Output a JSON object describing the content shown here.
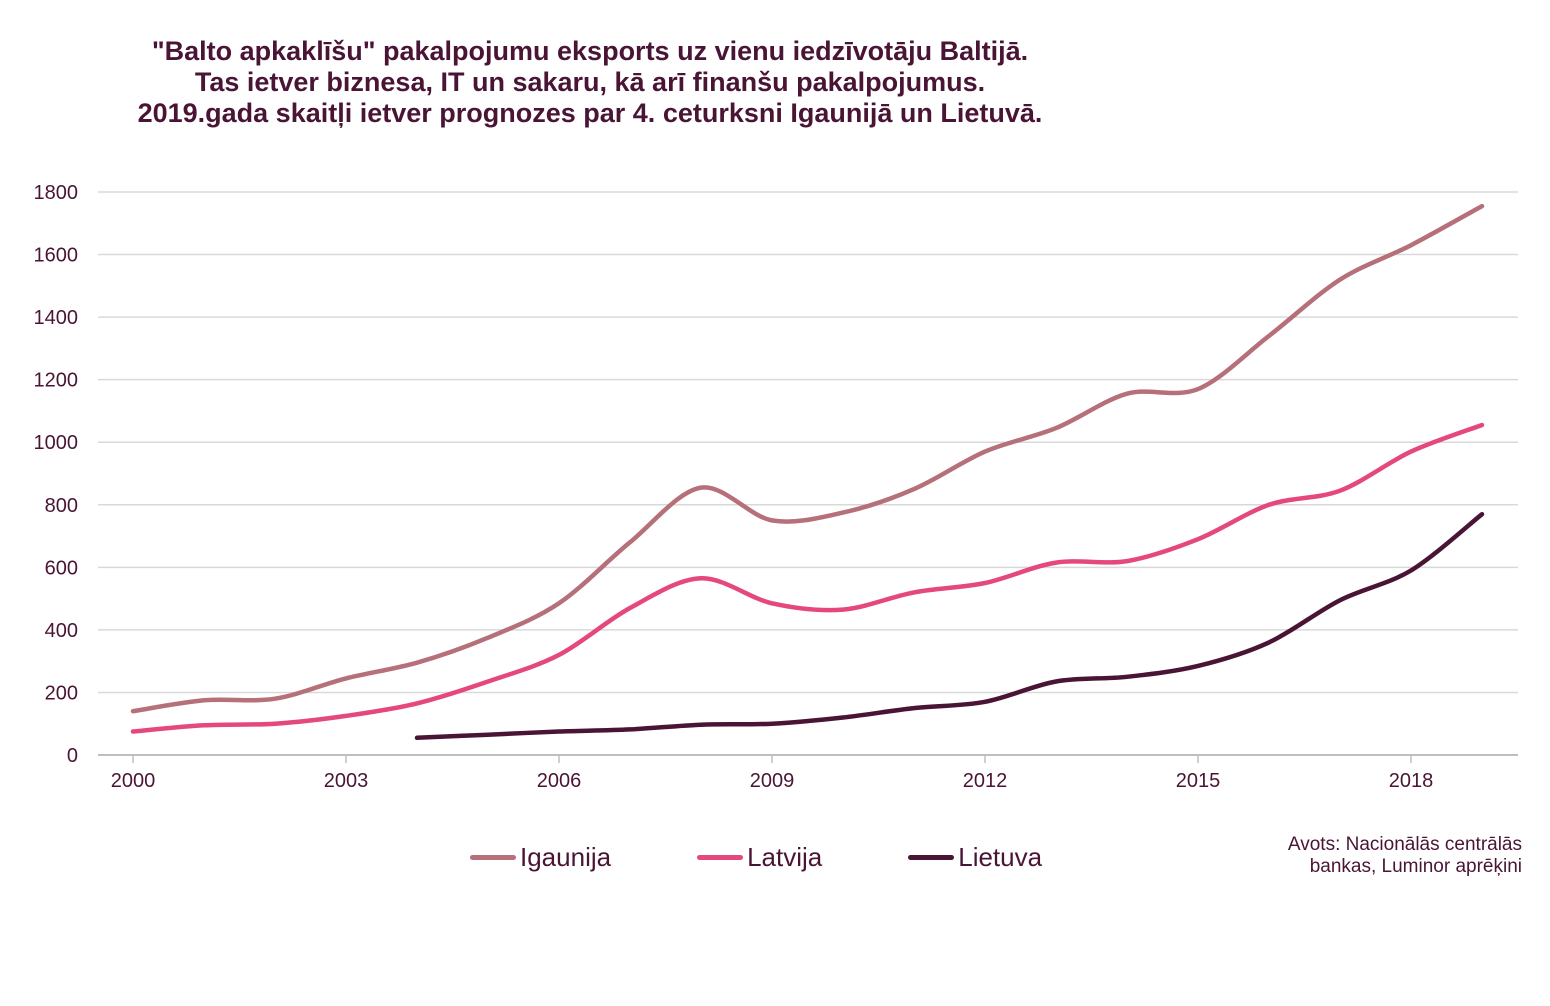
{
  "title": {
    "line1": "\"Balto apkaklīšu\" pakalpojumu eksports uz vienu iedzīvotāju Baltijā.",
    "line2": "Tas ietver biznesa, IT un sakaru, kā arī finanšu pakalpojumus.",
    "line3": "2019.gada skaitļi ietver prognozes par 4. ceturksni Igaunijā un Lietuvā."
  },
  "source": {
    "line1": "Avots: Nacionālās centrālās",
    "line2": "bankas, Luminor aprēķini"
  },
  "chart_data": {
    "type": "line",
    "x": [
      2000,
      2001,
      2002,
      2003,
      2004,
      2005,
      2006,
      2007,
      2008,
      2009,
      2010,
      2011,
      2012,
      2013,
      2014,
      2015,
      2016,
      2017,
      2018,
      2019
    ],
    "x_tick_labels": [
      "2000",
      "2003",
      "2006",
      "2009",
      "2012",
      "2015",
      "2018"
    ],
    "x_ticks": [
      2000,
      2003,
      2006,
      2009,
      2012,
      2015,
      2018
    ],
    "y_ticks": [
      0,
      200,
      400,
      600,
      800,
      1000,
      1200,
      1400,
      1600,
      1800
    ],
    "ylim": [
      0,
      1800
    ],
    "xlim": [
      2000,
      2019
    ],
    "grid": true,
    "legend_position": "bottom",
    "series": [
      {
        "name": "Igaunija",
        "color": "#b5707a",
        "values": [
          140,
          175,
          180,
          245,
          295,
          375,
          485,
          680,
          855,
          750,
          775,
          850,
          970,
          1045,
          1155,
          1170,
          1340,
          1520,
          1630,
          1755
        ]
      },
      {
        "name": "Latvija",
        "color": "#e5487a",
        "values": [
          75,
          95,
          100,
          125,
          165,
          235,
          320,
          470,
          565,
          485,
          465,
          520,
          550,
          615,
          620,
          690,
          800,
          845,
          970,
          1055
        ]
      },
      {
        "name": "Lietuva",
        "color": "#4a1535",
        "values": [
          null,
          null,
          null,
          null,
          55,
          65,
          75,
          82,
          97,
          100,
          120,
          150,
          170,
          235,
          250,
          285,
          360,
          495,
          590,
          770
        ]
      }
    ]
  }
}
